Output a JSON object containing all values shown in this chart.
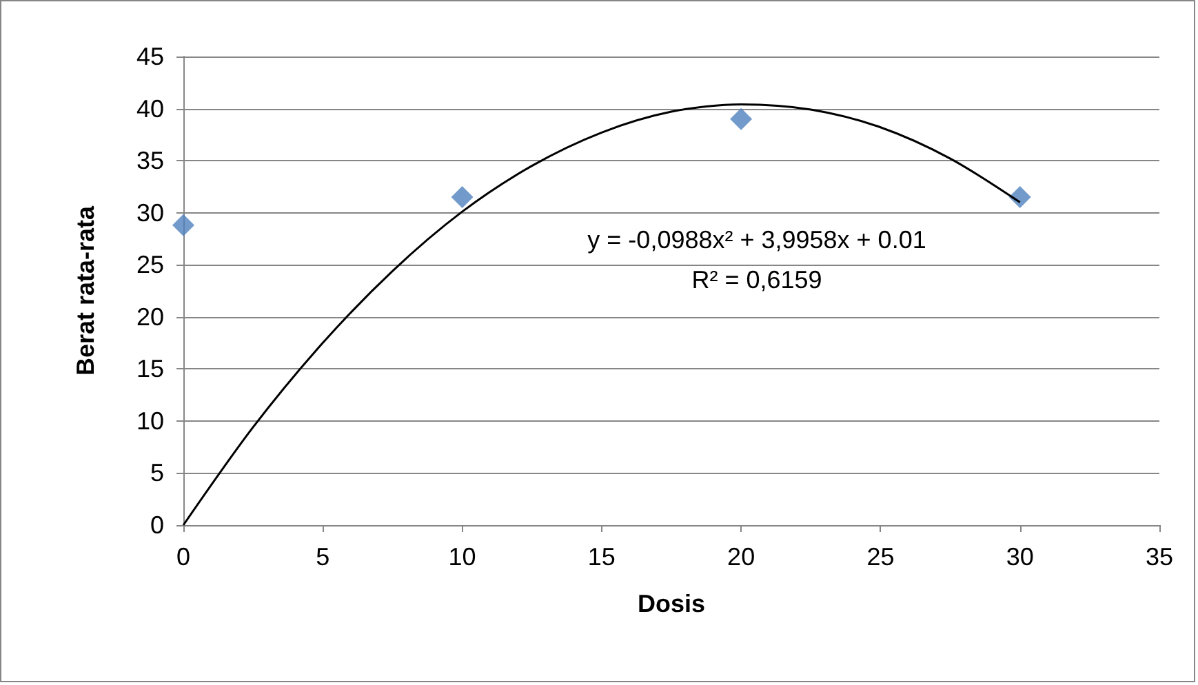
{
  "chart_data": {
    "type": "scatter",
    "xlabel": "Dosis",
    "ylabel": "Berat rata-rata",
    "xlim": [
      0,
      35
    ],
    "xticks": [
      0,
      5,
      10,
      15,
      20,
      25,
      30,
      35
    ],
    "ylim": [
      0,
      45
    ],
    "yticks": [
      0,
      5,
      10,
      15,
      20,
      25,
      30,
      35,
      40,
      45
    ],
    "grid": "y",
    "marker": "diamond",
    "series": [
      {
        "color": "#4f81bd",
        "x": [
          0,
          10,
          20,
          30
        ],
        "values": [
          28.8,
          31.5,
          39,
          31.5
        ]
      },
      {
        "type": "line",
        "color": "#000000",
        "marker": "none",
        "line_style": "solid",
        "x": [
          0,
          2.5,
          5,
          7.5,
          10,
          12.5,
          15,
          17.5,
          20,
          22.5,
          25,
          27.5,
          30
        ],
        "values": [
          0.0,
          9.4,
          17.5,
          24.4,
          30.1,
          34.5,
          37.7,
          39.7,
          40.4,
          39.9,
          38.2,
          35.2,
          31.0
        ]
      }
    ],
    "annotations": [
      "y = -0,0988x² + 3,9958x + 0.01",
      "R² = 0,6159"
    ]
  }
}
